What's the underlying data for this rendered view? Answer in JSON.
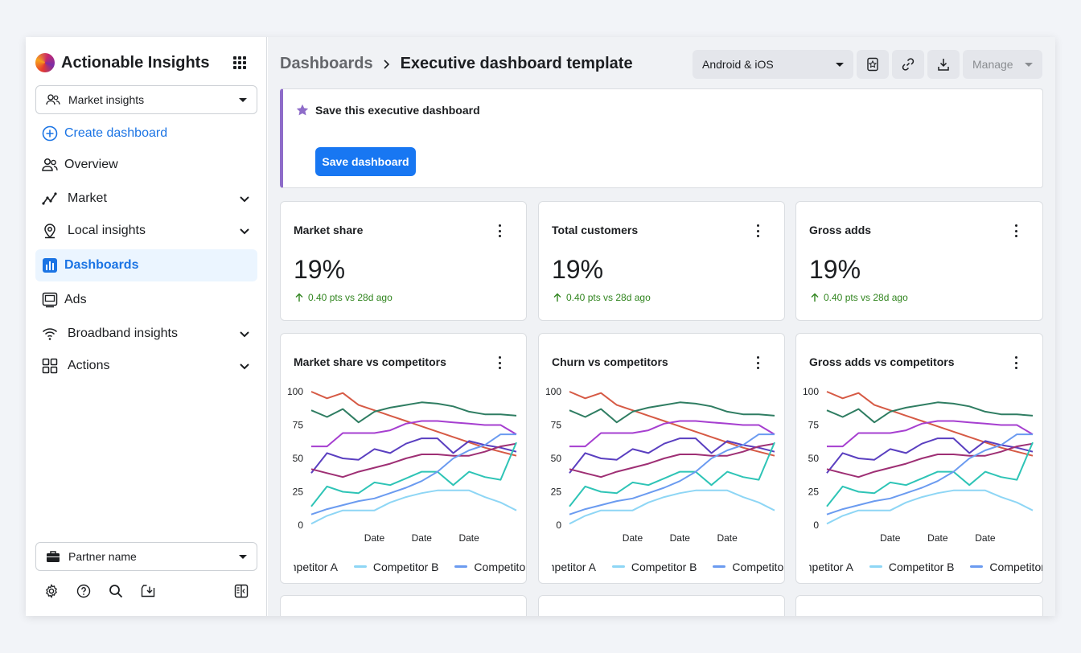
{
  "app": {
    "name": "Actionable Insights"
  },
  "sidebar": {
    "workspace": "Market insights",
    "create_label": "Create dashboard",
    "items": [
      {
        "label": "Overview",
        "icon": "people-icon",
        "expandable": false
      },
      {
        "label": "Market",
        "icon": "trend-icon",
        "expandable": true
      },
      {
        "label": "Local insights",
        "icon": "map-pin-icon",
        "expandable": true
      },
      {
        "label": "Dashboards",
        "icon": "bar-chart-icon",
        "expandable": false,
        "active": true
      },
      {
        "label": "Ads",
        "icon": "monitor-icon",
        "expandable": false
      },
      {
        "label": "Broadband insights",
        "icon": "wifi-icon",
        "expandable": true
      },
      {
        "label": "Actions",
        "icon": "grid-icon",
        "expandable": true
      }
    ],
    "partner": "Partner name"
  },
  "header": {
    "breadcrumb_root": "Dashboards",
    "breadcrumb_current": "Executive dashboard template",
    "platform": "Android & iOS",
    "manage_label": "Manage"
  },
  "banner": {
    "title": "Save this executive dashboard",
    "button_label": "Save dashboard"
  },
  "metrics": [
    {
      "title": "Market share",
      "value": "19%",
      "change": "0.40 pts vs 28d ago"
    },
    {
      "title": "Total customers",
      "value": "19%",
      "change": "0.40 pts vs 28d ago"
    },
    {
      "title": "Gross adds",
      "value": "19%",
      "change": "0.40 pts vs 28d ago"
    }
  ],
  "legend_items": [
    {
      "name": "Competitor A",
      "color": "#2ec4b6"
    },
    {
      "name": "Competitor B",
      "color": "#8ed6f5"
    },
    {
      "name": "Competitor C",
      "color": "#6b9bf0"
    }
  ],
  "colors": {
    "accent": "#1877f2",
    "banner_border": "#8e6cc9",
    "positive": "#31851f"
  },
  "chart_data": [
    {
      "type": "line",
      "title": "Market share vs competitors",
      "xlabel": "",
      "ylabel": "",
      "ylim": [
        0,
        100
      ],
      "yticks": [
        0,
        25,
        50,
        75,
        100
      ],
      "xtick_labels": [
        "Date",
        "Date",
        "Date"
      ],
      "xtick_positions": [
        4,
        7,
        10
      ],
      "x": [
        0,
        1,
        2,
        3,
        4,
        5,
        6,
        7,
        8,
        9,
        10,
        11,
        12,
        13
      ],
      "series": [
        {
          "color": "#d65a45",
          "values": [
            100,
            95,
            99,
            90,
            86,
            82,
            78,
            74,
            70,
            66,
            62,
            58,
            55,
            52
          ]
        },
        {
          "color": "#2f7d62",
          "values": [
            86,
            81,
            87,
            77,
            85,
            88,
            90,
            92,
            91,
            89,
            85,
            83,
            83,
            82
          ]
        },
        {
          "color": "#a63fd0",
          "values": [
            59,
            59,
            69,
            69,
            69,
            71,
            76,
            78,
            78,
            77,
            76,
            75,
            75,
            68
          ]
        },
        {
          "color": "#5a3fc0",
          "values": [
            39,
            54,
            50,
            49,
            57,
            54,
            61,
            65,
            65,
            54,
            63,
            60,
            58,
            55
          ]
        },
        {
          "color": "#9e2f74",
          "values": [
            42,
            39,
            36,
            40,
            43,
            46,
            50,
            53,
            53,
            52,
            52,
            55,
            59,
            61
          ]
        },
        {
          "color": "#2ec4b6",
          "values": [
            14,
            29,
            25,
            24,
            32,
            30,
            35,
            40,
            40,
            30,
            40,
            36,
            34,
            62
          ]
        },
        {
          "color": "#6b9bf0",
          "values": [
            8,
            12,
            15,
            18,
            20,
            24,
            28,
            33,
            40,
            50,
            56,
            60,
            68,
            68
          ]
        },
        {
          "color": "#8ed6f5",
          "values": [
            1,
            7,
            11,
            11,
            11,
            17,
            21,
            24,
            26,
            26,
            26,
            21,
            17,
            11
          ]
        }
      ]
    },
    {
      "type": "line",
      "title": "Churn vs competitors",
      "xlabel": "",
      "ylabel": "",
      "ylim": [
        0,
        100
      ],
      "yticks": [
        0,
        25,
        50,
        75,
        100
      ],
      "xtick_labels": [
        "Date",
        "Date",
        "Date"
      ],
      "xtick_positions": [
        4,
        7,
        10
      ],
      "x": [
        0,
        1,
        2,
        3,
        4,
        5,
        6,
        7,
        8,
        9,
        10,
        11,
        12,
        13
      ],
      "series": [
        {
          "color": "#d65a45",
          "values": [
            100,
            95,
            99,
            90,
            86,
            82,
            78,
            74,
            70,
            66,
            62,
            58,
            55,
            52
          ]
        },
        {
          "color": "#2f7d62",
          "values": [
            86,
            81,
            87,
            77,
            85,
            88,
            90,
            92,
            91,
            89,
            85,
            83,
            83,
            82
          ]
        },
        {
          "color": "#a63fd0",
          "values": [
            59,
            59,
            69,
            69,
            69,
            71,
            76,
            78,
            78,
            77,
            76,
            75,
            75,
            68
          ]
        },
        {
          "color": "#5a3fc0",
          "values": [
            39,
            54,
            50,
            49,
            57,
            54,
            61,
            65,
            65,
            54,
            63,
            60,
            58,
            55
          ]
        },
        {
          "color": "#9e2f74",
          "values": [
            42,
            39,
            36,
            40,
            43,
            46,
            50,
            53,
            53,
            52,
            52,
            55,
            59,
            61
          ]
        },
        {
          "color": "#2ec4b6",
          "values": [
            14,
            29,
            25,
            24,
            32,
            30,
            35,
            40,
            40,
            30,
            40,
            36,
            34,
            62
          ]
        },
        {
          "color": "#6b9bf0",
          "values": [
            8,
            12,
            15,
            18,
            20,
            24,
            28,
            33,
            40,
            50,
            56,
            60,
            68,
            68
          ]
        },
        {
          "color": "#8ed6f5",
          "values": [
            1,
            7,
            11,
            11,
            11,
            17,
            21,
            24,
            26,
            26,
            26,
            21,
            17,
            11
          ]
        }
      ]
    },
    {
      "type": "line",
      "title": "Gross adds vs competitors",
      "xlabel": "",
      "ylabel": "",
      "ylim": [
        0,
        100
      ],
      "yticks": [
        0,
        25,
        50,
        75,
        100
      ],
      "xtick_labels": [
        "Date",
        "Date",
        "Date"
      ],
      "xtick_positions": [
        4,
        7,
        10
      ],
      "x": [
        0,
        1,
        2,
        3,
        4,
        5,
        6,
        7,
        8,
        9,
        10,
        11,
        12,
        13
      ],
      "series": [
        {
          "color": "#d65a45",
          "values": [
            100,
            95,
            99,
            90,
            86,
            82,
            78,
            74,
            70,
            66,
            62,
            58,
            55,
            52
          ]
        },
        {
          "color": "#2f7d62",
          "values": [
            86,
            81,
            87,
            77,
            85,
            88,
            90,
            92,
            91,
            89,
            85,
            83,
            83,
            82
          ]
        },
        {
          "color": "#a63fd0",
          "values": [
            59,
            59,
            69,
            69,
            69,
            71,
            76,
            78,
            78,
            77,
            76,
            75,
            75,
            68
          ]
        },
        {
          "color": "#5a3fc0",
          "values": [
            39,
            54,
            50,
            49,
            57,
            54,
            61,
            65,
            65,
            54,
            63,
            60,
            58,
            55
          ]
        },
        {
          "color": "#9e2f74",
          "values": [
            42,
            39,
            36,
            40,
            43,
            46,
            50,
            53,
            53,
            52,
            52,
            55,
            59,
            61
          ]
        },
        {
          "color": "#2ec4b6",
          "values": [
            14,
            29,
            25,
            24,
            32,
            30,
            35,
            40,
            40,
            30,
            40,
            36,
            34,
            62
          ]
        },
        {
          "color": "#6b9bf0",
          "values": [
            8,
            12,
            15,
            18,
            20,
            24,
            28,
            33,
            40,
            50,
            56,
            60,
            68,
            68
          ]
        },
        {
          "color": "#8ed6f5",
          "values": [
            1,
            7,
            11,
            11,
            11,
            17,
            21,
            24,
            26,
            26,
            26,
            21,
            17,
            11
          ]
        }
      ]
    }
  ]
}
